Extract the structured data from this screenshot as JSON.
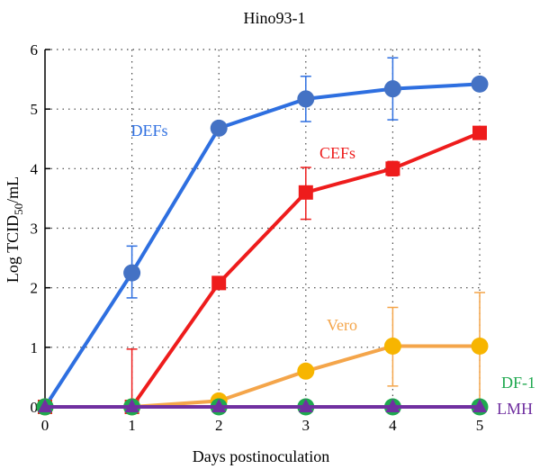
{
  "chart_data": {
    "type": "line",
    "title": "Hino93-1",
    "xlabel": "Days postinoculation",
    "ylabel": {
      "main": "Log TCID",
      "sub": "50",
      "suffix": "/mL"
    },
    "xlim": [
      0,
      5
    ],
    "ylim": [
      0,
      6
    ],
    "x_ticks": [
      0,
      1,
      2,
      3,
      4,
      5
    ],
    "y_ticks": [
      0,
      1,
      2,
      3,
      4,
      5,
      6
    ],
    "grid": "dotted-vertical",
    "x": [
      0,
      1,
      2,
      3,
      4,
      5
    ],
    "series": [
      {
        "name": "DEFs",
        "color": "#2E6FE0",
        "marker_color": "#4472C4",
        "marker": "circle",
        "values": [
          0,
          2.25,
          4.68,
          5.17,
          5.34,
          5.42
        ],
        "error_up": [
          0,
          0.45,
          0,
          0.38,
          0.52,
          0
        ],
        "error_down": [
          0,
          0.42,
          0,
          0.38,
          0.52,
          0
        ]
      },
      {
        "name": "CEFs",
        "color": "#EE1C1C",
        "marker_color": "#EE1C1C",
        "marker": "square",
        "values": [
          0,
          0,
          2.08,
          3.6,
          4.0,
          4.6
        ],
        "error_up": [
          0,
          0.97,
          0,
          0.42,
          0.12,
          0
        ],
        "error_down": [
          0,
          0,
          0,
          0.45,
          0.12,
          0
        ]
      },
      {
        "name": "Vero",
        "color": "#F4A54A",
        "marker_color": "#F7B500",
        "marker": "circle",
        "values": [
          0,
          0,
          0.1,
          0.6,
          1.02,
          1.02
        ],
        "error_up": [
          0,
          0,
          0,
          0,
          0.65,
          0.9
        ],
        "error_down": [
          0,
          0,
          0,
          0,
          0.67,
          1.02
        ]
      },
      {
        "name": "DF-1",
        "color": "#1FA84F",
        "marker_color": "#1FA84F",
        "marker": "circle",
        "values": [
          0,
          0,
          0,
          0,
          0,
          0
        ],
        "error_up": [
          0,
          0,
          0,
          0,
          0,
          0
        ],
        "error_down": [
          0,
          0,
          0,
          0,
          0,
          0
        ]
      },
      {
        "name": "LMH",
        "color": "#7030A0",
        "marker_color": "#7030A0",
        "marker": "triangle",
        "values": [
          0,
          0,
          0,
          0,
          0,
          0
        ],
        "error_up": [
          0,
          0,
          0,
          0,
          0,
          0
        ],
        "error_down": [
          0,
          0,
          0,
          0,
          0,
          0
        ]
      }
    ]
  }
}
